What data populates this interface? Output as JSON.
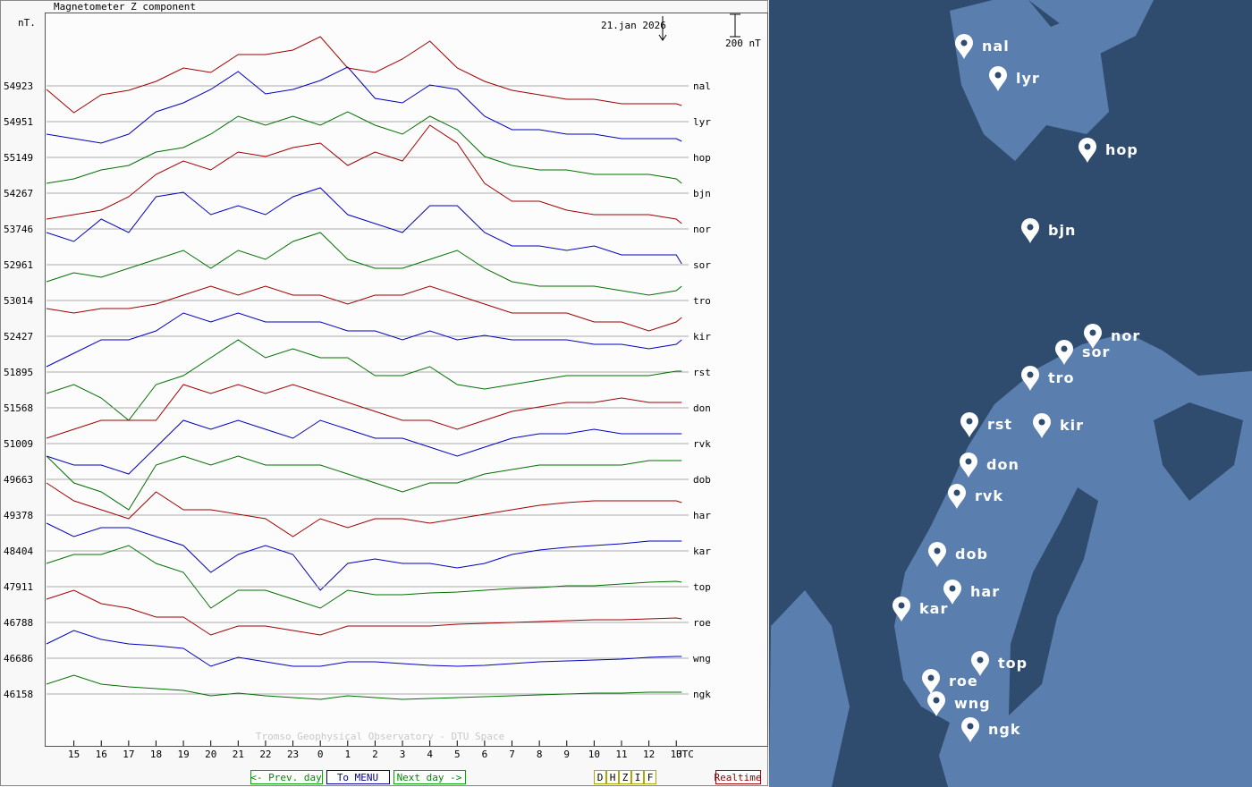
{
  "chart_data": {
    "type": "line",
    "title": "Magnetometer Z component",
    "y_unit": "nT.",
    "date": "21.jan 2026",
    "x_label": "UTC",
    "credit": "Tromso Geophysical Observatory - DTU Space",
    "scale_bar": {
      "value": 200,
      "label": "200 nT"
    },
    "x": [
      14,
      15,
      16,
      17,
      18,
      19,
      20,
      21,
      22,
      23,
      24,
      25,
      26,
      27,
      28,
      29,
      30,
      31,
      32,
      33,
      34,
      35,
      36,
      37,
      37.2
    ],
    "xlim": [
      14,
      37.45
    ],
    "xticks": [
      15,
      16,
      17,
      18,
      19,
      20,
      21,
      22,
      23,
      {
        "value": 24,
        "label": "0"
      },
      {
        "value": 25,
        "label": "1"
      },
      {
        "value": 26,
        "label": "2"
      },
      {
        "value": 27,
        "label": "3"
      },
      {
        "value": 28,
        "label": "4"
      },
      {
        "value": 29,
        "label": "5"
      },
      {
        "value": 30,
        "label": "6"
      },
      {
        "value": 31,
        "label": "7"
      },
      {
        "value": 32,
        "label": "8"
      },
      {
        "value": 33,
        "label": "9"
      },
      {
        "value": 34,
        "label": "10"
      },
      {
        "value": 35,
        "label": "11"
      },
      {
        "value": 36,
        "label": "12"
      },
      {
        "value": 37,
        "label": "13"
      }
    ],
    "series": [
      {
        "name": "nal",
        "baseline": 54923,
        "color": "#a00000",
        "values": [
          -32,
          -240,
          -80,
          -40,
          40,
          160,
          120,
          280,
          280,
          320,
          440,
          160,
          120,
          240,
          400,
          160,
          40,
          -40,
          -80,
          -120,
          -120,
          -160,
          -160,
          -160,
          -176
        ]
      },
      {
        "name": "lyr",
        "baseline": 54951,
        "color": "#0000c0",
        "values": [
          -112,
          -152,
          -192,
          -112,
          88,
          168,
          288,
          448,
          248,
          288,
          368,
          488,
          208,
          168,
          328,
          288,
          48,
          -72,
          -72,
          -112,
          -112,
          -152,
          -152,
          -152,
          -176
        ]
      },
      {
        "name": "hop",
        "baseline": 55149,
        "color": "#007000",
        "values": [
          -232,
          -192,
          -112,
          -72,
          48,
          88,
          208,
          368,
          288,
          368,
          288,
          408,
          288,
          208,
          368,
          248,
          8,
          -72,
          -112,
          -112,
          -152,
          -152,
          -152,
          -192,
          -232
        ]
      },
      {
        "name": "bjn",
        "baseline": 54267,
        "color": "#a00000",
        "values": [
          -232,
          -192,
          -152,
          -32,
          168,
          288,
          208,
          368,
          328,
          408,
          448,
          248,
          368,
          288,
          608,
          448,
          88,
          -72,
          -72,
          -152,
          -192,
          -192,
          -192,
          -232,
          -272
        ]
      },
      {
        "name": "nor",
        "baseline": 53746,
        "color": "#0000c0",
        "values": [
          -32,
          -112,
          88,
          -32,
          288,
          328,
          128,
          208,
          128,
          288,
          368,
          128,
          48,
          -32,
          208,
          208,
          -32,
          -152,
          -152,
          -192,
          -152,
          -232,
          -232,
          -232,
          -312
        ]
      },
      {
        "name": "sor",
        "baseline": 52961,
        "color": "#007000",
        "values": [
          -152,
          -72,
          -112,
          -32,
          48,
          128,
          -32,
          128,
          48,
          208,
          288,
          48,
          -32,
          -32,
          48,
          128,
          -32,
          -152,
          -192,
          -192,
          -192,
          -232,
          -272,
          -232,
          -192
        ]
      },
      {
        "name": "tro",
        "baseline": 53014,
        "color": "#a00000",
        "values": [
          -72,
          -112,
          -72,
          -72,
          -32,
          48,
          128,
          48,
          128,
          48,
          48,
          -32,
          48,
          48,
          128,
          48,
          -32,
          -112,
          -112,
          -112,
          -192,
          -192,
          -272,
          -192,
          -152
        ]
      },
      {
        "name": "kir",
        "baseline": 52427,
        "color": "#0000c0",
        "values": [
          -272,
          -152,
          -32,
          -32,
          48,
          208,
          128,
          208,
          128,
          128,
          128,
          48,
          48,
          -32,
          48,
          -32,
          8,
          -32,
          -32,
          -32,
          -72,
          -72,
          -112,
          -72,
          -32
        ]
      },
      {
        "name": "rst",
        "baseline": 51895,
        "color": "#007000",
        "values": [
          -192,
          -112,
          -232,
          -432,
          -112,
          -32,
          128,
          288,
          128,
          208,
          128,
          128,
          -32,
          -32,
          48,
          -112,
          -152,
          -112,
          -72,
          -32,
          -32,
          -32,
          -32,
          8,
          8
        ]
      },
      {
        "name": "don",
        "baseline": 51568,
        "color": "#a00000",
        "values": [
          -272,
          -192,
          -112,
          -112,
          -112,
          208,
          128,
          208,
          128,
          208,
          128,
          48,
          -32,
          -112,
          -112,
          -192,
          -112,
          -32,
          8,
          48,
          48,
          88,
          48,
          48,
          48
        ]
      },
      {
        "name": "rvk",
        "baseline": 51009,
        "color": "#0000c0",
        "values": [
          -112,
          -192,
          -192,
          -272,
          -32,
          208,
          128,
          208,
          128,
          48,
          208,
          128,
          48,
          48,
          -32,
          -112,
          -32,
          48,
          88,
          88,
          128,
          88,
          88,
          88,
          88
        ]
      },
      {
        "name": "dob",
        "baseline": 49663,
        "color": "#007000",
        "values": [
          208,
          -32,
          -112,
          -272,
          128,
          208,
          128,
          208,
          128,
          128,
          128,
          48,
          -32,
          -112,
          -32,
          -32,
          48,
          88,
          128,
          128,
          128,
          128,
          168,
          168,
          168
        ]
      },
      {
        "name": "har",
        "baseline": 49378,
        "color": "#a00000",
        "values": [
          288,
          128,
          48,
          -32,
          208,
          48,
          48,
          8,
          -32,
          -192,
          -32,
          -112,
          -32,
          -32,
          -72,
          -32,
          8,
          48,
          88,
          112,
          128,
          128,
          128,
          128,
          112
        ]
      },
      {
        "name": "kar",
        "baseline": 48404,
        "color": "#0000c0",
        "values": [
          248,
          128,
          208,
          208,
          128,
          48,
          -192,
          -32,
          48,
          -32,
          -352,
          -112,
          -72,
          -112,
          -112,
          -152,
          -112,
          -32,
          8,
          32,
          48,
          64,
          88,
          88,
          88
        ]
      },
      {
        "name": "top",
        "baseline": 47911,
        "color": "#007000",
        "values": [
          208,
          288,
          288,
          368,
          208,
          128,
          -192,
          -32,
          -32,
          -112,
          -192,
          -32,
          -72,
          -72,
          -56,
          -48,
          -32,
          -16,
          -8,
          8,
          8,
          24,
          40,
          48,
          40
        ]
      },
      {
        "name": "roe",
        "baseline": 46788,
        "color": "#a00000",
        "values": [
          208,
          288,
          168,
          128,
          48,
          48,
          -112,
          -32,
          -32,
          -72,
          -112,
          -32,
          -32,
          -32,
          -32,
          -16,
          -8,
          0,
          8,
          16,
          24,
          24,
          32,
          40,
          32
        ]
      },
      {
        "name": "wng",
        "baseline": 46686,
        "color": "#0000c0",
        "values": [
          128,
          248,
          168,
          128,
          112,
          88,
          -72,
          8,
          -32,
          -72,
          -72,
          -32,
          -32,
          -48,
          -64,
          -72,
          -64,
          -48,
          -32,
          -24,
          -16,
          -8,
          8,
          16,
          16
        ]
      },
      {
        "name": "ngk",
        "baseline": 46158,
        "color": "#007000",
        "values": [
          88,
          168,
          88,
          64,
          48,
          32,
          -16,
          8,
          -16,
          -32,
          -48,
          -16,
          -32,
          -48,
          -40,
          -32,
          -24,
          -16,
          -8,
          0,
          8,
          8,
          16,
          16,
          16
        ]
      }
    ]
  },
  "buttons": {
    "prev": "<- Prev. day",
    "menu": "To MENU",
    "next": "Next day ->",
    "components": [
      "D",
      "H",
      "Z",
      "I",
      "F"
    ],
    "realtime": "Realtime"
  },
  "map": {
    "stations": [
      "nal",
      "lyr",
      "hop",
      "bjn",
      "nor",
      "sor",
      "tro",
      "rst",
      "kir",
      "don",
      "rvk",
      "dob",
      "har",
      "kar",
      "top",
      "roe",
      "wng",
      "ngk"
    ]
  }
}
